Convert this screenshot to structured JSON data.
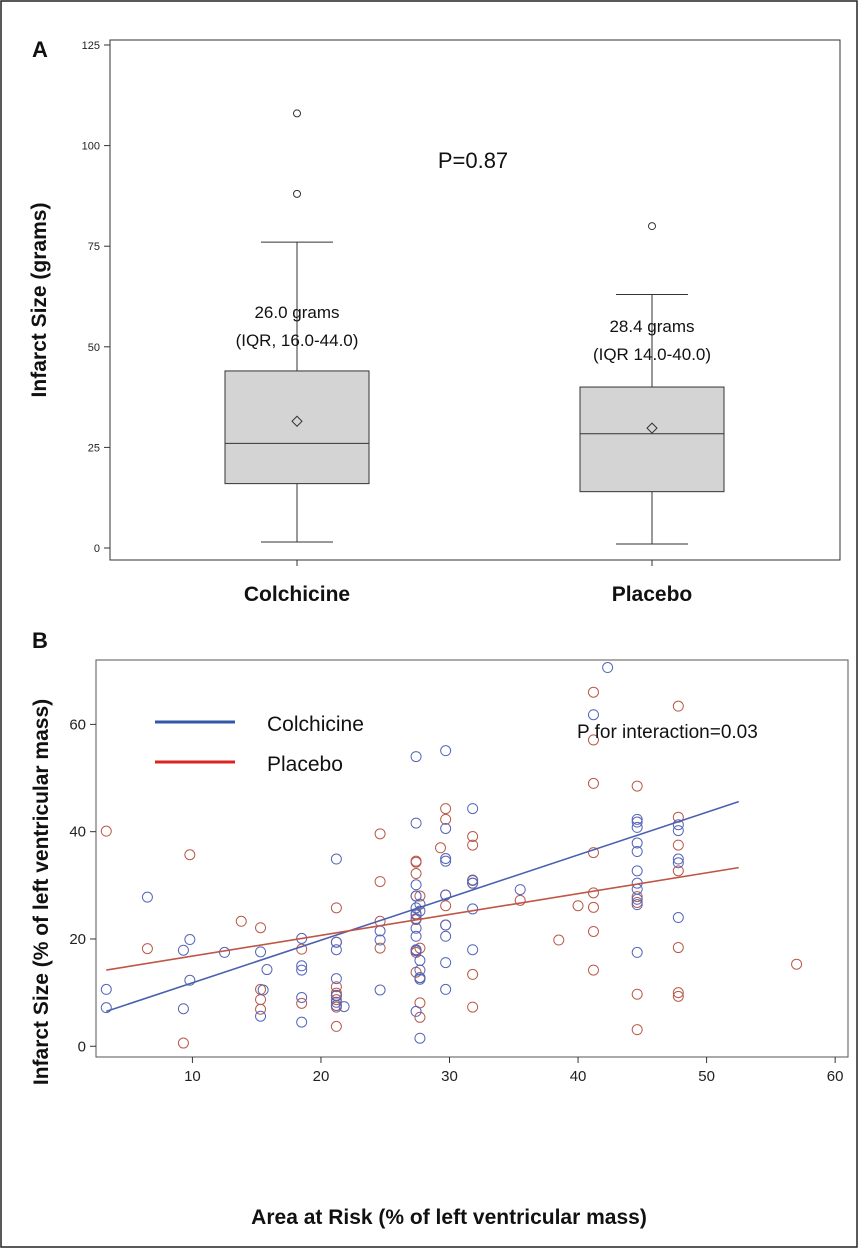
{
  "chart_data": [
    {
      "panel": "A",
      "type": "box",
      "title": "",
      "ylabel": "Infarct Size (grams)",
      "xlabel": "",
      "ylim": [
        0,
        125
      ],
      "yticks": [
        0,
        25,
        50,
        75,
        100,
        125
      ],
      "categories": [
        "Colchicine",
        "Placebo"
      ],
      "boxes": [
        {
          "q1": 16.0,
          "median": 26.0,
          "q3": 44.0,
          "whisker_low": 1.5,
          "whisker_high": 76,
          "mean": 31.5,
          "outliers": [
            88,
            108
          ]
        },
        {
          "q1": 14.0,
          "median": 28.4,
          "q3": 40.0,
          "whisker_low": 1.0,
          "whisker_high": 63,
          "mean": 29.8,
          "outliers": [
            80
          ]
        }
      ],
      "box_labels": [
        [
          "26.0 grams",
          "(IQR, 16.0-44.0)"
        ],
        [
          "28.4 grams",
          "(IQR 14.0-40.0)"
        ]
      ],
      "annotation": "P=0.87"
    },
    {
      "panel": "B",
      "type": "scatter",
      "title": "",
      "xlabel": "Area at Risk (% of left ventricular mass)",
      "ylabel": "Infarct Size (% of left ventricular mass)",
      "xlim": [
        2.5,
        61
      ],
      "ylim": [
        -2,
        72
      ],
      "xticks": [
        10,
        20,
        30,
        40,
        50,
        60
      ],
      "yticks": [
        0,
        20,
        40,
        60
      ],
      "legend_position": "top-left",
      "annotation": "P for interaction=0.03",
      "series": [
        {
          "name": "Colchicine",
          "color": "#5566b8",
          "line_color": "#4a5fb0",
          "fit_line": [
            [
              3.3,
              6.5
            ],
            [
              52.5,
              45.6
            ]
          ],
          "points": [
            [
              3.3,
              10.6
            ],
            [
              3.3,
              7.2
            ],
            [
              6.5,
              27.8
            ],
            [
              9.3,
              17.9
            ],
            [
              9.3,
              7.0
            ],
            [
              9.8,
              19.9
            ],
            [
              9.8,
              12.3
            ],
            [
              12.5,
              17.5
            ],
            [
              15.3,
              17.6
            ],
            [
              15.3,
              5.6
            ],
            [
              15.5,
              10.5
            ],
            [
              15.8,
              14.3
            ],
            [
              18.5,
              20.1
            ],
            [
              18.5,
              15.0
            ],
            [
              18.5,
              14.2
            ],
            [
              18.5,
              9.1
            ],
            [
              18.5,
              4.5
            ],
            [
              21.2,
              34.9
            ],
            [
              21.2,
              19.4
            ],
            [
              21.2,
              18.0
            ],
            [
              21.2,
              12.6
            ],
            [
              21.2,
              9.5
            ],
            [
              21.2,
              8.2
            ],
            [
              21.2,
              7.6
            ],
            [
              21.8,
              7.4
            ],
            [
              24.6,
              21.5
            ],
            [
              24.6,
              19.8
            ],
            [
              24.6,
              10.5
            ],
            [
              27.4,
              54.0
            ],
            [
              27.4,
              41.6
            ],
            [
              27.4,
              30.1
            ],
            [
              27.4,
              28.0
            ],
            [
              27.4,
              25.8
            ],
            [
              27.4,
              24.5
            ],
            [
              27.4,
              23.8
            ],
            [
              27.4,
              22.0
            ],
            [
              27.4,
              20.5
            ],
            [
              27.4,
              18.0
            ],
            [
              27.4,
              17.8
            ],
            [
              27.4,
              6.5
            ],
            [
              27.7,
              26.5
            ],
            [
              27.7,
              25.2
            ],
            [
              27.7,
              16.0
            ],
            [
              27.7,
              14.2
            ],
            [
              27.7,
              12.8
            ],
            [
              27.7,
              12.5
            ],
            [
              27.7,
              1.5
            ],
            [
              29.7,
              55.1
            ],
            [
              29.7,
              40.6
            ],
            [
              29.7,
              35.0
            ],
            [
              29.7,
              34.5
            ],
            [
              29.7,
              28.2
            ],
            [
              29.7,
              22.6
            ],
            [
              29.7,
              20.5
            ],
            [
              29.7,
              15.6
            ],
            [
              29.7,
              10.6
            ],
            [
              31.8,
              44.3
            ],
            [
              31.8,
              30.9
            ],
            [
              31.8,
              30.4
            ],
            [
              31.8,
              25.6
            ],
            [
              31.8,
              18.0
            ],
            [
              35.5,
              29.2
            ],
            [
              41.2,
              61.8
            ],
            [
              42.3,
              70.6
            ],
            [
              44.6,
              42.3
            ],
            [
              44.6,
              41.8
            ],
            [
              44.6,
              40.8
            ],
            [
              44.6,
              37.9
            ],
            [
              44.6,
              36.3
            ],
            [
              44.6,
              32.7
            ],
            [
              44.6,
              30.4
            ],
            [
              44.6,
              29.3
            ],
            [
              44.6,
              27.4
            ],
            [
              44.6,
              26.4
            ],
            [
              44.6,
              17.5
            ],
            [
              47.8,
              41.3
            ],
            [
              47.8,
              40.2
            ],
            [
              47.8,
              34.9
            ],
            [
              47.8,
              34.2
            ],
            [
              47.8,
              24.0
            ]
          ]
        },
        {
          "name": "Placebo",
          "color": "#b85a4a",
          "line_color": "#c05545",
          "fit_line": [
            [
              3.3,
              14.2
            ],
            [
              52.5,
              33.3
            ]
          ],
          "points": [
            [
              3.3,
              40.1
            ],
            [
              6.5,
              18.2
            ],
            [
              9.3,
              0.6
            ],
            [
              9.8,
              35.7
            ],
            [
              13.8,
              23.3
            ],
            [
              15.3,
              22.1
            ],
            [
              15.3,
              10.6
            ],
            [
              15.3,
              8.7
            ],
            [
              15.3,
              6.9
            ],
            [
              18.5,
              18.1
            ],
            [
              18.5,
              8.0
            ],
            [
              21.2,
              25.8
            ],
            [
              21.2,
              19.4
            ],
            [
              21.2,
              11.1
            ],
            [
              21.2,
              9.9
            ],
            [
              21.2,
              9.4
            ],
            [
              21.2,
              8.7
            ],
            [
              21.2,
              7.3
            ],
            [
              21.2,
              3.7
            ],
            [
              24.6,
              39.6
            ],
            [
              24.6,
              30.7
            ],
            [
              24.6,
              23.3
            ],
            [
              24.6,
              18.3
            ],
            [
              27.4,
              34.5
            ],
            [
              27.4,
              34.3
            ],
            [
              27.4,
              32.2
            ],
            [
              27.4,
              28.0
            ],
            [
              27.4,
              24.7
            ],
            [
              27.4,
              23.6
            ],
            [
              27.4,
              17.9
            ],
            [
              27.4,
              17.5
            ],
            [
              27.4,
              13.8
            ],
            [
              27.7,
              28.0
            ],
            [
              27.7,
              18.3
            ],
            [
              27.7,
              12.8
            ],
            [
              27.7,
              8.1
            ],
            [
              27.7,
              5.4
            ],
            [
              29.3,
              37.0
            ],
            [
              29.7,
              44.3
            ],
            [
              29.7,
              42.3
            ],
            [
              29.7,
              28.2
            ],
            [
              29.7,
              26.2
            ],
            [
              29.7,
              22.6
            ],
            [
              31.8,
              39.1
            ],
            [
              31.8,
              37.5
            ],
            [
              31.8,
              31.0
            ],
            [
              31.8,
              30.4
            ],
            [
              31.8,
              13.4
            ],
            [
              31.8,
              7.3
            ],
            [
              35.5,
              27.2
            ],
            [
              38.5,
              19.8
            ],
            [
              40.0,
              26.2
            ],
            [
              41.2,
              57.1
            ],
            [
              41.2,
              49.0
            ],
            [
              41.2,
              36.1
            ],
            [
              41.2,
              28.6
            ],
            [
              41.2,
              25.9
            ],
            [
              41.2,
              21.4
            ],
            [
              41.2,
              14.2
            ],
            [
              41.2,
              66.0
            ],
            [
              44.6,
              48.5
            ],
            [
              44.6,
              27.9
            ],
            [
              44.6,
              26.8
            ],
            [
              44.6,
              9.7
            ],
            [
              44.6,
              3.1
            ],
            [
              47.8,
              63.4
            ],
            [
              47.8,
              42.7
            ],
            [
              47.8,
              37.5
            ],
            [
              47.8,
              32.7
            ],
            [
              47.8,
              18.4
            ],
            [
              47.8,
              10.0
            ],
            [
              47.8,
              9.3
            ],
            [
              57.0,
              15.3
            ]
          ]
        }
      ]
    }
  ]
}
